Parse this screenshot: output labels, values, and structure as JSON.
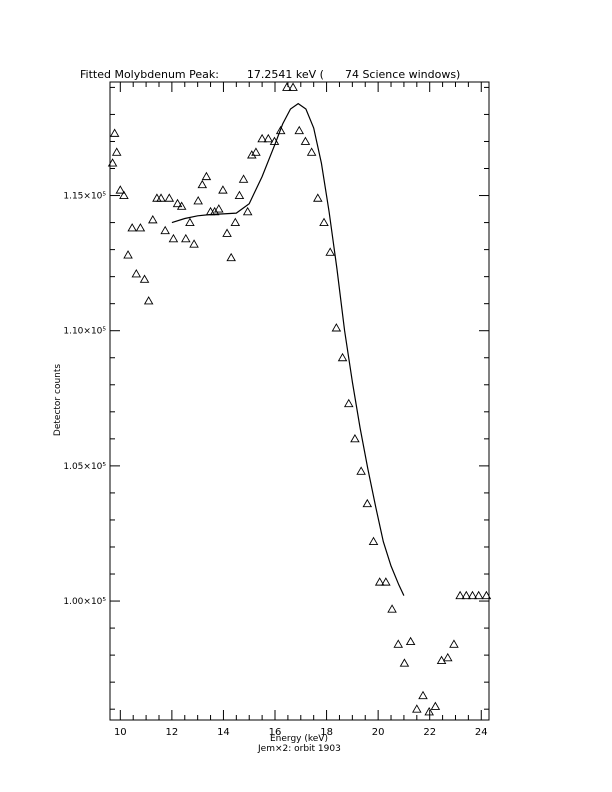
{
  "chart_data": {
    "type": "scatter",
    "title": "Fitted Molybdenum Peak:        17.2541 keV (      74 Science windows)",
    "xlabel": "Energy (keV)",
    "ylabel": "Detector counts",
    "caption": "Jem×2: orbit 1903",
    "xlim": [
      9.6,
      24.3
    ],
    "ylim": [
      95600,
      119200
    ],
    "x_ticks": [
      10,
      12,
      14,
      16,
      18,
      20,
      22,
      24
    ],
    "y_ticks": [
      {
        "value": 100000,
        "label": "1.00×10⁵"
      },
      {
        "value": 105000,
        "label": "1.05×10⁵"
      },
      {
        "value": 110000,
        "label": "1.10×10⁵"
      },
      {
        "value": 115000,
        "label": "1.15×10⁵"
      }
    ],
    "grid": false,
    "series": [
      {
        "marker": "triangle",
        "x": [
          9.7,
          9.78,
          9.86,
          10.0,
          10.14,
          10.3,
          10.46,
          10.62,
          10.78,
          10.94,
          11.1,
          11.26,
          11.42,
          11.58,
          11.74,
          11.9,
          12.06,
          12.22,
          12.38,
          12.54,
          12.7,
          12.86,
          13.02,
          13.18,
          13.34,
          13.5,
          13.66,
          13.82,
          13.98,
          14.14,
          14.3,
          14.46,
          14.62,
          14.78,
          14.94,
          15.1,
          15.26,
          15.5,
          15.74,
          15.98,
          16.22,
          16.46,
          16.7,
          16.94,
          17.18,
          17.42,
          17.66,
          17.9,
          18.14,
          18.38,
          18.62,
          18.86,
          19.1,
          19.34,
          19.58,
          19.82,
          20.06,
          20.3,
          20.54,
          20.78,
          21.02,
          21.26,
          21.5,
          21.74,
          21.98,
          22.22,
          22.46,
          22.7,
          22.94,
          23.18,
          23.42,
          23.66,
          23.9,
          24.2
        ],
        "y": [
          116200,
          117300,
          116600,
          115200,
          115000,
          112800,
          113800,
          112100,
          113800,
          111900,
          111100,
          114100,
          114900,
          114900,
          113700,
          114900,
          113400,
          114700,
          114600,
          113400,
          114000,
          113200,
          114800,
          115400,
          115700,
          114400,
          114400,
          114500,
          115200,
          113600,
          112700,
          114000,
          115000,
          115600,
          114400,
          116500,
          116600,
          117100,
          117100,
          117000,
          117400,
          119000,
          119000,
          117400,
          117000,
          116600,
          114900,
          114000,
          112900,
          110100,
          109000,
          107300,
          106000,
          104800,
          103600,
          102200,
          100700,
          100700,
          99700,
          98400,
          97700,
          98500,
          96000,
          96500,
          95900,
          96100,
          97800,
          97900,
          98400,
          100200,
          100200,
          100200,
          100200,
          100200
        ]
      },
      {
        "name": "",
        "type": "line",
        "x": [
          12.0,
          12.5,
          13.0,
          13.5,
          14.0,
          14.5,
          15.0,
          15.5,
          16.0,
          16.3,
          16.6,
          16.9,
          17.2,
          17.5,
          17.8,
          18.1,
          18.4,
          18.7,
          19.0,
          19.3,
          19.6,
          19.9,
          20.2,
          20.5,
          20.8,
          21.0
        ],
        "y": [
          114000,
          114150,
          114250,
          114300,
          114320,
          114350,
          114700,
          115700,
          116900,
          117650,
          118200,
          118400,
          118200,
          117500,
          116200,
          114400,
          112300,
          110000,
          108100,
          106400,
          104900,
          103500,
          102200,
          101300,
          100600,
          100200
        ]
      }
    ]
  }
}
